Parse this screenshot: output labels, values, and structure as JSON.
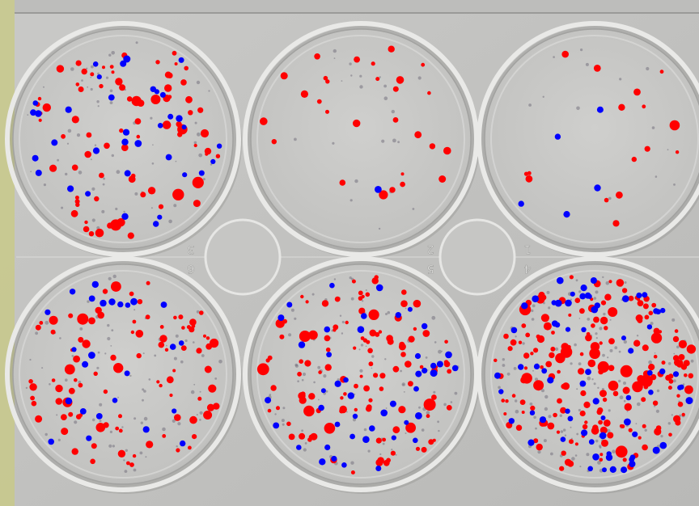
{
  "plate": {
    "well_labels": [
      "3",
      "2",
      "1",
      "6",
      "5",
      "4"
    ],
    "colors": {
      "background": "#a9a9a6",
      "plate": "#c2c2c0",
      "well_fill": "#c9c9c7",
      "rim": "#e9e9e7",
      "rim_shadow": "#8c8c8a",
      "edge_tint": "#c8c986",
      "red_marker": "#ff0000",
      "blue_marker": "#0000ff"
    }
  },
  "wells": [
    {
      "label": "3",
      "row": 1,
      "col": 1,
      "density": "high",
      "red_markers": 78,
      "blue_markers": 35
    },
    {
      "label": "2",
      "row": 1,
      "col": 2,
      "density": "low",
      "red_markers": 28,
      "blue_markers": 1
    },
    {
      "label": "1",
      "row": 1,
      "col": 3,
      "density": "low",
      "red_markers": 16,
      "blue_markers": 5
    },
    {
      "label": "6",
      "row": 2,
      "col": 1,
      "density": "high",
      "red_markers": 95,
      "blue_markers": 25
    },
    {
      "label": "5",
      "row": 2,
      "col": 2,
      "density": "high",
      "red_markers": 115,
      "blue_markers": 45
    },
    {
      "label": "4",
      "row": 2,
      "col": 3,
      "density": "very-high",
      "red_markers": 185,
      "blue_markers": 70
    }
  ]
}
